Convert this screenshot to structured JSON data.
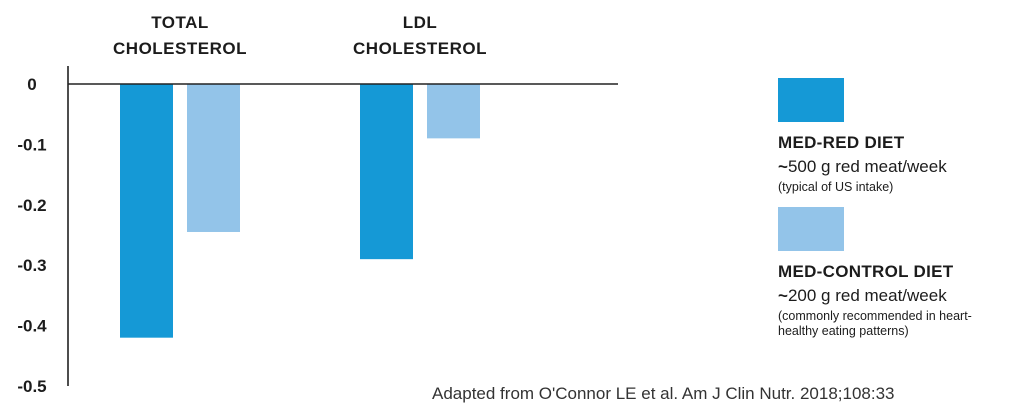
{
  "chart_data": {
    "type": "bar",
    "categories": [
      "TOTAL CHOLESTEROL",
      "LDL CHOLESTEROL"
    ],
    "category_lines": [
      [
        "TOTAL",
        "CHOLESTEROL"
      ],
      [
        "LDL",
        "CHOLESTEROL"
      ]
    ],
    "series": [
      {
        "name": "MED-RED DIET",
        "values": [
          -0.42,
          -0.29
        ],
        "color": "#1599d6"
      },
      {
        "name": "MED-CONTROL DIET",
        "values": [
          -0.245,
          -0.09
        ],
        "color": "#93c4e9"
      }
    ],
    "ylim": [
      -0.5,
      0
    ],
    "y_ticks": [
      "0",
      "-0.1",
      "-0.2",
      "-0.3",
      "-0.4",
      "-0.5"
    ],
    "y_tick_values": [
      0,
      -0.1,
      -0.2,
      -0.3,
      -0.4,
      -0.5
    ],
    "grid": false,
    "legend_position": "right"
  },
  "legend": [
    {
      "name": "MED-RED DIET",
      "main": "500 g red meat/week",
      "note": "(typical of US intake)",
      "color": "#1599d6"
    },
    {
      "name": "MED-CONTROL DIET",
      "main": "200 g red meat/week",
      "note": "(commonly recommended in heart-healthy eating patterns)",
      "color": "#93c4e9"
    }
  ],
  "tilde": "~",
  "source": "Adapted from O'Connor LE et al. Am J Clin Nutr. 2018;108:33"
}
